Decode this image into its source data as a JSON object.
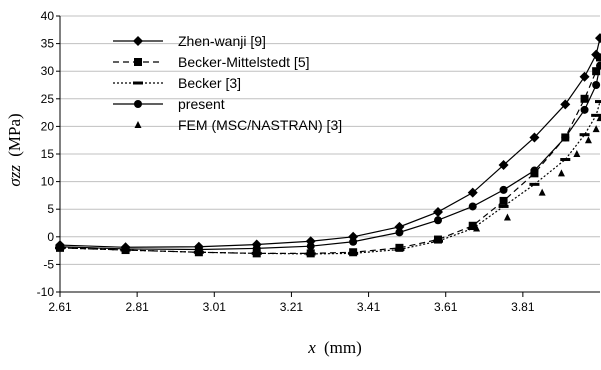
{
  "chart_data": {
    "type": "line",
    "xlabel_var": "x",
    "xlabel_unit": "(mm)",
    "ylabel_var": "σzz",
    "ylabel_unit": "(MPa)",
    "xlim": [
      2.61,
      4.01
    ],
    "ylim": [
      -10,
      40
    ],
    "xticks": [
      "2.61",
      "2.81",
      "3.01",
      "3.21",
      "3.41",
      "3.61",
      "3.81"
    ],
    "yticks": [
      "40",
      "35",
      "30",
      "25",
      "20",
      "15",
      "10",
      "5",
      "0",
      "-5",
      "-10"
    ],
    "legend_position": "top-left",
    "series": [
      {
        "name": "Zhen-wanji [9]",
        "marker": "diamond",
        "line": "solid",
        "x": [
          2.61,
          2.78,
          2.97,
          3.12,
          3.26,
          3.37,
          3.49,
          3.59,
          3.68,
          3.76,
          3.84,
          3.92,
          3.97,
          4.0,
          4.01
        ],
        "y": [
          -1.5,
          -1.9,
          -1.8,
          -1.4,
          -0.8,
          0.0,
          1.8,
          4.5,
          8.0,
          13.0,
          18.0,
          24.0,
          29.0,
          33.0,
          36.0
        ]
      },
      {
        "name": "Becker-Mittelstedt [5]",
        "marker": "square",
        "line": "dashed",
        "x": [
          2.61,
          2.78,
          2.97,
          3.12,
          3.26,
          3.37,
          3.49,
          3.59,
          3.68,
          3.76,
          3.84,
          3.92,
          3.97,
          4.0,
          4.01
        ],
        "y": [
          -2.0,
          -2.4,
          -2.8,
          -3.0,
          -3.0,
          -2.8,
          -2.0,
          -0.5,
          2.0,
          6.5,
          11.5,
          18.0,
          25.0,
          30.0,
          32.5
        ]
      },
      {
        "name": "Becker [3]",
        "marker": "dash",
        "line": "dotted",
        "x": [
          2.61,
          2.78,
          2.97,
          3.12,
          3.26,
          3.37,
          3.49,
          3.59,
          3.68,
          3.76,
          3.84,
          3.92,
          3.97,
          4.0,
          4.01
        ],
        "y": [
          -2.0,
          -2.4,
          -2.8,
          -3.0,
          -3.1,
          -3.0,
          -2.3,
          -0.8,
          1.5,
          5.5,
          9.5,
          14.0,
          18.5,
          22.0,
          24.5
        ]
      },
      {
        "name": "present",
        "marker": "circle",
        "line": "solid",
        "x": [
          2.61,
          2.78,
          2.97,
          3.12,
          3.26,
          3.37,
          3.49,
          3.59,
          3.68,
          3.76,
          3.84,
          3.92,
          3.97,
          4.0,
          4.01
        ],
        "y": [
          -1.8,
          -2.2,
          -2.3,
          -2.1,
          -1.7,
          -0.9,
          0.8,
          3.0,
          5.5,
          8.5,
          12.0,
          18.0,
          23.0,
          27.5,
          31.0
        ]
      },
      {
        "name": "FEM (MSC/NASTRAN) [3]",
        "marker": "triangle",
        "line": "none",
        "x": [
          3.69,
          3.77,
          3.86,
          3.91,
          3.95,
          3.98,
          4.0,
          4.01
        ],
        "y": [
          1.5,
          3.5,
          8.0,
          11.5,
          15.0,
          17.5,
          19.5,
          21.5
        ]
      }
    ]
  }
}
